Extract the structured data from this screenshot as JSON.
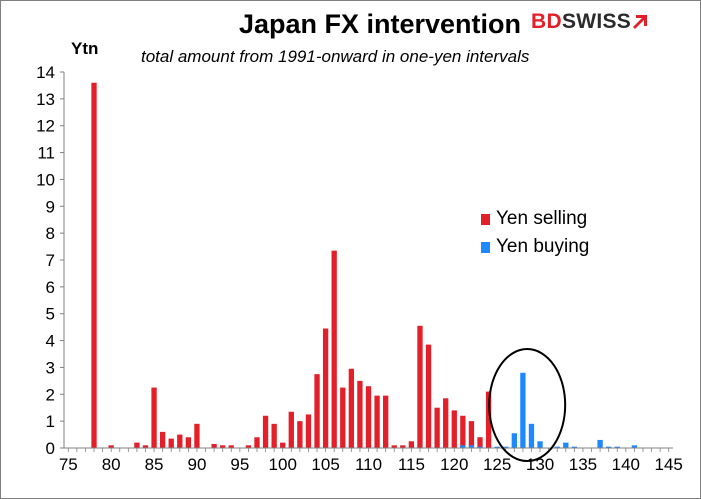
{
  "brand": {
    "text_left": "BD",
    "text_right": "SWISS",
    "logo_icon": "arrow-up-right-icon",
    "accent_color": "#e3202a"
  },
  "chart_data": {
    "type": "bar",
    "title": "Japan FX intervention",
    "subtitle": "total amount from 1991-onward in one-yen intervals",
    "ylabel": "Ytn",
    "xlabel": "",
    "xlim": [
      74.5,
      145.5
    ],
    "ylim": [
      0,
      14
    ],
    "x_ticks": [
      75,
      80,
      85,
      90,
      95,
      100,
      105,
      110,
      115,
      120,
      125,
      130,
      135,
      140,
      145
    ],
    "y_ticks": [
      0,
      1,
      2,
      3,
      4,
      5,
      6,
      7,
      8,
      9,
      10,
      11,
      12,
      13,
      14
    ],
    "grid": false,
    "legend_position": "right",
    "series": [
      {
        "name": "Yen selling",
        "color": "#e3202a",
        "points": [
          [
            78,
            13.6
          ],
          [
            80,
            0.1
          ],
          [
            83,
            0.2
          ],
          [
            84,
            0.1
          ],
          [
            85,
            2.25
          ],
          [
            86,
            0.6
          ],
          [
            87,
            0.35
          ],
          [
            88,
            0.5
          ],
          [
            89,
            0.4
          ],
          [
            90,
            0.9
          ],
          [
            92,
            0.15
          ],
          [
            93,
            0.1
          ],
          [
            94,
            0.1
          ],
          [
            96,
            0.1
          ],
          [
            97,
            0.4
          ],
          [
            98,
            1.2
          ],
          [
            99,
            0.9
          ],
          [
            100,
            0.2
          ],
          [
            101,
            1.35
          ],
          [
            102,
            1.0
          ],
          [
            103,
            1.25
          ],
          [
            104,
            2.75
          ],
          [
            105,
            4.45
          ],
          [
            106,
            7.35
          ],
          [
            107,
            2.25
          ],
          [
            108,
            2.95
          ],
          [
            109,
            2.5
          ],
          [
            110,
            2.3
          ],
          [
            111,
            1.95
          ],
          [
            112,
            1.95
          ],
          [
            113,
            0.1
          ],
          [
            114,
            0.1
          ],
          [
            115,
            0.25
          ],
          [
            116,
            4.55
          ],
          [
            117,
            3.85
          ],
          [
            118,
            1.5
          ],
          [
            119,
            1.85
          ],
          [
            120,
            1.4
          ],
          [
            121,
            1.2
          ],
          [
            122,
            1.0
          ],
          [
            123,
            0.4
          ],
          [
            124,
            2.1
          ]
        ]
      },
      {
        "name": "Yen buying",
        "color": "#1e88ff",
        "points": [
          [
            121,
            0.1
          ],
          [
            122,
            0.1
          ],
          [
            123,
            0.05
          ],
          [
            125,
            0.05
          ],
          [
            126,
            0.05
          ],
          [
            127,
            0.55
          ],
          [
            128,
            2.8
          ],
          [
            129,
            0.9
          ],
          [
            130,
            0.25
          ],
          [
            132,
            0.05
          ],
          [
            133,
            0.2
          ],
          [
            134,
            0.05
          ],
          [
            137,
            0.3
          ],
          [
            138,
            0.05
          ],
          [
            139,
            0.05
          ],
          [
            141,
            0.1
          ]
        ]
      }
    ],
    "annotations": [
      {
        "type": "ellipse-highlight",
        "center_x": 128.5,
        "center_y": 1.6
      }
    ]
  }
}
